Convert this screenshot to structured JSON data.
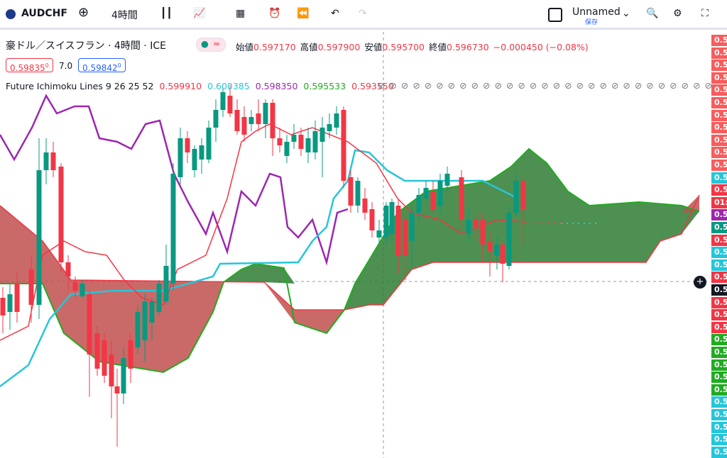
{
  "toolbar": {
    "symbol": "AUDCHF",
    "interval": "4時間",
    "layout_name": "Unnamed",
    "save": "保存"
  },
  "legend": {
    "title": "豪ドル／スイスフラン · 4時間 · ICE",
    "ohlc": [
      {
        "label": "始値",
        "value": "0.597170"
      },
      {
        "label": "高値",
        "value": "0.597900"
      },
      {
        "label": "安値",
        "value": "0.595700"
      },
      {
        "label": "終値",
        "value": "0.596730"
      }
    ],
    "change": "−0.000450 (−0.08%)",
    "sell": "0.59835",
    "sell_sup": "0",
    "spread": "7.0",
    "buy": "0.59842",
    "buy_sup": "0"
  },
  "indicator": {
    "name": "Future Ichimoku Lines 9 26 25 52",
    "values": [
      {
        "text": "0.599910",
        "color": "#f23645"
      },
      {
        "text": "0.600385",
        "color": "#26c6da"
      },
      {
        "text": "0.598350",
        "color": "#9c27b0"
      },
      {
        "text": "0.595533",
        "color": "#22ab22"
      },
      {
        "text": "0.593550",
        "color": "#f23645"
      }
    ]
  },
  "price_axis": [
    {
      "label": "0.5",
      "color": "#f85c5c"
    },
    {
      "label": "0.5",
      "color": "#f85c5c"
    },
    {
      "label": "0.5",
      "color": "#f85c5c"
    },
    {
      "label": "0.5",
      "color": "#f85c5c"
    },
    {
      "label": "0.5",
      "color": "#f85c5c"
    },
    {
      "label": "0.5",
      "color": "#f85c5c"
    },
    {
      "label": "0.5",
      "color": "#f85c5c"
    },
    {
      "label": "0.5",
      "color": "#f85c5c"
    },
    {
      "label": "0.5",
      "color": "#f85c5c"
    },
    {
      "label": "0.5",
      "color": "#f85c5c"
    },
    {
      "label": "0.5",
      "color": "#f85c5c"
    },
    {
      "label": "0.5",
      "color": "#26c6da"
    },
    {
      "label": "0.5",
      "color": "#f23645"
    },
    {
      "label": "01:",
      "color": "#f23645"
    },
    {
      "label": "0.5",
      "color": "#9c27b0"
    },
    {
      "label": "0.5",
      "color": "#089981"
    },
    {
      "label": "0.5",
      "color": "#f23645"
    },
    {
      "label": "0.5",
      "color": "#26c6da"
    },
    {
      "label": "0.5",
      "color": "#26c6da"
    },
    {
      "label": "0.5",
      "color": "#f23645"
    },
    {
      "label": "0.5",
      "color": "#131722"
    },
    {
      "label": "0.5",
      "color": "#f23645"
    },
    {
      "label": "0.5",
      "color": "#f23645"
    },
    {
      "label": "0.5",
      "color": "#f23645"
    },
    {
      "label": "0.5",
      "color": "#22ab22"
    },
    {
      "label": "0.5",
      "color": "#22ab22"
    },
    {
      "label": "0.5",
      "color": "#22ab22"
    },
    {
      "label": "0.5",
      "color": "#22ab22"
    },
    {
      "label": "0.5",
      "color": "#22ab22"
    },
    {
      "label": "0.5",
      "color": "#26c6da"
    },
    {
      "label": "0.5",
      "color": "#26c6da"
    },
    {
      "label": "0.5",
      "color": "#26c6da"
    },
    {
      "label": "0.5",
      "color": "#26c6da"
    },
    {
      "label": "0.5",
      "color": "#26c6da"
    }
  ]
}
